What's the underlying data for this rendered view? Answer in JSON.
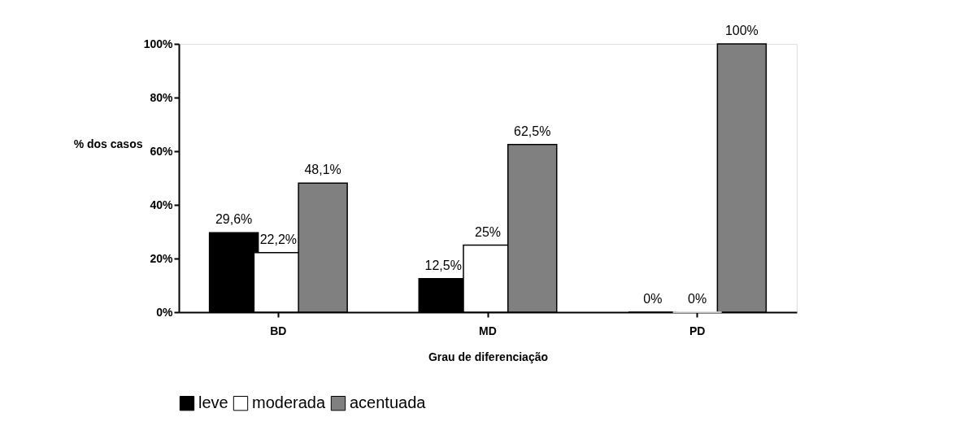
{
  "chart_data": {
    "type": "bar",
    "xlabel": "Grau de diferenciação",
    "ylabel": "% dos casos",
    "categories": [
      "BD",
      "MD",
      "PD"
    ],
    "series": [
      {
        "name": "leve",
        "color": "#000000",
        "values": [
          29.6,
          12.5,
          0
        ],
        "value_labels": [
          "29,6%",
          "12,5%",
          "0%"
        ]
      },
      {
        "name": "moderada",
        "color": "#ffffff",
        "values": [
          22.2,
          25,
          0
        ],
        "value_labels": [
          "22,2%",
          "25%",
          "0%"
        ]
      },
      {
        "name": "acentuada",
        "color": "#808080",
        "values": [
          48.1,
          62.5,
          100
        ],
        "value_labels": [
          "48,1%",
          "62,5%",
          "100%"
        ]
      }
    ],
    "ylim": [
      0,
      100
    ],
    "yticks": [
      {
        "value": 0,
        "label": "0%"
      },
      {
        "value": 20,
        "label": "20%"
      },
      {
        "value": 40,
        "label": "40%"
      },
      {
        "value": 60,
        "label": "60%"
      },
      {
        "value": 80,
        "label": "80%"
      },
      {
        "value": 100,
        "label": "100%"
      }
    ],
    "grid": false,
    "legend": "bottom"
  }
}
